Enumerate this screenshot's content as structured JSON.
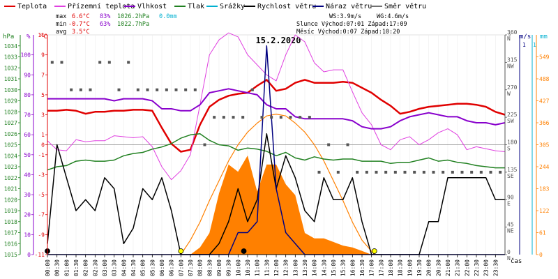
{
  "legend": [
    {
      "label": "Teplota",
      "color": "#e00000"
    },
    {
      "label": "Přízemní teplota",
      "color": "#e040e0"
    },
    {
      "label": "Vlhkost",
      "color": "#8800cc"
    },
    {
      "label": "Tlak",
      "color": "#208020"
    },
    {
      "label": "Srážky",
      "color": "#00b0d0"
    },
    {
      "label": "Rychlost větru",
      "color": "#000000"
    },
    {
      "label": "Náraz větru",
      "color": "#000080"
    },
    {
      "label": "Směr větru",
      "color": "#707070"
    }
  ],
  "stats": {
    "max_label": "max",
    "max_temp": "6.6°C",
    "max_hum": "83%",
    "max_press": "1026.2hPa",
    "max_rain": "0.0mm",
    "min_label": "min",
    "min_temp": "-0.7°C",
    "min_hum": "63%",
    "min_press": "1022.7hPa",
    "avg_label": "avg",
    "avg_temp": "3.5°C",
    "ws": "WS:3.9m/s",
    "wg": "WG:4.6m/s",
    "sun": "Slunce Východ:07:01  Západ:17:09",
    "moon": "Měsíc  Východ:0:07   Západ:10:20"
  },
  "axis_units": {
    "hpa": "hPa",
    "pct": "%",
    "degc": "°C",
    "deg": "°",
    "ms": "m/s",
    "mm": "mm",
    "time": "čas"
  },
  "axis_colors": {
    "hpa": "#208020",
    "pct": "#8800cc",
    "degc": "#e00000",
    "deg": "#555555",
    "ms": "#000080",
    "mm": "#00b0d0",
    "solar": "#ff8000"
  },
  "chart_data": {
    "type": "line",
    "title": "15.2.2020",
    "x_labels": [
      "00:00",
      "00:30",
      "01:00",
      "01:30",
      "02:00",
      "02:30",
      "03:00",
      "03:30",
      "04:00",
      "04:30",
      "05:00",
      "05:30",
      "06:00",
      "06:30",
      "07:00",
      "07:30",
      "08:00",
      "08:30",
      "09:00",
      "09:30",
      "10:00",
      "10:30",
      "11:00",
      "11:30",
      "12:00",
      "12:30",
      "13:00",
      "13:30",
      "14:00",
      "14:30",
      "15:00",
      "15:30",
      "16:00",
      "16:30",
      "17:00",
      "17:30",
      "18:00",
      "18:30",
      "19:00",
      "19:30",
      "20:00",
      "20:30",
      "21:00",
      "21:30",
      "22:00",
      "22:30",
      "23:00",
      "23:30"
    ],
    "axes": {
      "pressure_hpa": {
        "ticks": [
          1015,
          1016,
          1017,
          1018,
          1019,
          1020,
          1021,
          1022,
          1023,
          1024,
          1025,
          1026,
          1027,
          1028,
          1029,
          1030,
          1031,
          1032,
          1033,
          1034
        ],
        "range": [
          1015,
          1035
        ]
      },
      "humidity_pct": {
        "ticks": [
          0,
          10,
          20,
          30,
          40,
          50,
          60,
          70,
          80,
          90,
          100
        ],
        "range": [
          0,
          110
        ]
      },
      "temp_c": {
        "ticks": [
          -11,
          -9,
          -7,
          -5,
          -3,
          -1,
          0,
          1,
          3,
          5,
          7,
          9,
          11
        ],
        "range": [
          -11,
          11
        ]
      },
      "direction_deg": {
        "ticks": [
          {
            "v": 0,
            "l": "0 N"
          },
          {
            "v": 45,
            "l": "45 NE"
          },
          {
            "v": 90,
            "l": "90 E"
          },
          {
            "v": 135,
            "l": "135 SE"
          },
          {
            "v": 180,
            "l": "180 S"
          },
          {
            "v": 225,
            "l": "225 SW"
          },
          {
            "v": 270,
            "l": "270 W"
          },
          {
            "v": 315,
            "l": "315 NW"
          },
          {
            "v": 360,
            "l": "360 N"
          }
        ],
        "range": [
          0,
          360
        ]
      },
      "wind_ms": {
        "ticks": [
          1
        ],
        "range": [
          0,
          1
        ]
      },
      "rain_mm": {
        "ticks": [
          1
        ],
        "range": [
          0,
          1
        ]
      },
      "solar": {
        "ticks": [
          0,
          61,
          122,
          183,
          244,
          305,
          366,
          427,
          488,
          549
        ],
        "range": [
          0,
          610
        ]
      }
    },
    "hours": [
      0,
      0.5,
      1,
      1.5,
      2,
      2.5,
      3,
      3.5,
      4,
      4.5,
      5,
      5.5,
      6,
      6.5,
      7,
      7.5,
      8,
      8.5,
      9,
      9.5,
      10,
      10.5,
      11,
      11.5,
      12,
      12.5,
      13,
      13.5,
      14,
      14.5,
      15,
      15.5,
      16,
      16.5,
      17,
      17.5,
      18,
      18.5,
      19,
      19.5,
      20,
      20.5,
      21,
      21.5,
      22,
      22.5,
      23,
      23.5,
      24
    ],
    "series": [
      {
        "name": "Teplota",
        "axis": "temp_c",
        "color": "#e00000",
        "width": 2.5,
        "values": [
          3.4,
          3.4,
          3.5,
          3.4,
          3.1,
          3.3,
          3.3,
          3.4,
          3.4,
          3.5,
          3.5,
          3.4,
          1.7,
          0.1,
          -0.7,
          -0.5,
          2.0,
          3.8,
          4.5,
          4.9,
          5.1,
          5.2,
          5.9,
          6.5,
          5.4,
          5.6,
          6.2,
          6.5,
          6.2,
          6.2,
          6.2,
          6.3,
          6.2,
          5.7,
          5.2,
          4.5,
          3.9,
          3.1,
          3.3,
          3.6,
          3.8,
          3.9,
          4.0,
          4.1,
          4.1,
          4.0,
          3.8,
          3.3,
          3.0
        ]
      },
      {
        "name": "Přízemní teplota",
        "axis": "temp_c",
        "color": "#e040e0",
        "width": 1,
        "values": [
          0.4,
          -0.5,
          -0.6,
          0.5,
          0.3,
          0.4,
          0.4,
          0.9,
          0.8,
          0.7,
          0.8,
          -0.2,
          -2.2,
          -3.5,
          -2.6,
          -1.0,
          4.0,
          9.0,
          10.5,
          11.2,
          10.8,
          9.0,
          8.0,
          7.0,
          6.4,
          9.0,
          11.0,
          10.3,
          8.2,
          7.3,
          7.5,
          7.5,
          5.3,
          3.2,
          2.0,
          0.0,
          -0.5,
          0.5,
          0.8,
          0.0,
          0.5,
          1.2,
          1.6,
          1.0,
          -0.5,
          -0.2,
          -0.4,
          -0.6,
          -0.7
        ]
      },
      {
        "name": "Vlhkost",
        "axis": "humidity_pct",
        "color": "#8800cc",
        "width": 2,
        "values": [
          78,
          78,
          78,
          78,
          78,
          78,
          78,
          77,
          78,
          78,
          78,
          77,
          73,
          73,
          72,
          72,
          75,
          81,
          82,
          83,
          82,
          81,
          80,
          75,
          73,
          73,
          69,
          68,
          68,
          68,
          68,
          68,
          67,
          64,
          63,
          63,
          64,
          67,
          69,
          70,
          71,
          70,
          69,
          69,
          67,
          66,
          66,
          65,
          66
        ]
      },
      {
        "name": "Tlak",
        "axis": "pressure_hpa",
        "color": "#208020",
        "width": 1.5,
        "values": [
          1022.7,
          1023.0,
          1023.1,
          1023.5,
          1023.6,
          1023.5,
          1023.5,
          1023.6,
          1024.0,
          1024.2,
          1024.3,
          1024.6,
          1024.8,
          1025.1,
          1025.6,
          1025.9,
          1026.0,
          1025.4,
          1025.0,
          1024.9,
          1024.5,
          1024.7,
          1024.6,
          1024.4,
          1024.0,
          1024.3,
          1023.8,
          1023.6,
          1023.9,
          1023.7,
          1023.6,
          1023.7,
          1023.7,
          1023.5,
          1023.5,
          1023.5,
          1023.3,
          1023.4,
          1023.4,
          1023.6,
          1023.8,
          1023.5,
          1023.6,
          1023.4,
          1023.3,
          1023.1,
          1023.0,
          1022.9,
          1022.9
        ]
      },
      {
        "name": "Rychlost větru",
        "axis": "wind_ms",
        "color": "#000000",
        "width": 1.5,
        "values": [
          0.05,
          0.5,
          0.35,
          0.2,
          0.25,
          0.2,
          0.35,
          0.3,
          0.05,
          0.12,
          0.3,
          0.25,
          0.35,
          0.2,
          0.0,
          0.0,
          0.0,
          0.0,
          0.05,
          0.15,
          0.3,
          0.15,
          0.25,
          0.55,
          0.3,
          0.45,
          0.35,
          0.2,
          0.15,
          0.35,
          0.25,
          0.25,
          0.35,
          0.15,
          0.0,
          0.0,
          0.0,
          0.0,
          0.0,
          0.0,
          0.15,
          0.15,
          0.35,
          0.35,
          0.35,
          0.35,
          0.35,
          0.25,
          0.25
        ]
      },
      {
        "name": "Náraz větru",
        "axis": "wind_ms",
        "color": "#000080",
        "width": 1.5,
        "values": [
          0,
          0,
          0,
          0,
          0,
          0,
          0,
          0,
          0,
          0,
          0,
          0,
          0,
          0,
          0,
          0,
          0,
          0,
          0,
          0,
          0.1,
          0.1,
          0.15,
          0.95,
          0.3,
          0.1,
          0.05,
          0,
          0,
          0,
          0,
          0,
          0,
          0,
          0,
          0,
          0,
          0,
          0,
          0,
          0,
          0,
          0,
          0,
          0,
          0,
          0,
          0,
          0
        ]
      },
      {
        "name": "Solar",
        "axis": "solar",
        "color": "#ff8000",
        "area": true,
        "values": [
          0,
          0,
          0,
          0,
          0,
          0,
          0,
          0,
          0,
          0,
          0,
          0,
          0,
          0,
          0,
          0,
          20,
          60,
          170,
          250,
          230,
          275,
          175,
          250,
          250,
          195,
          165,
          60,
          45,
          45,
          35,
          25,
          20,
          10,
          0,
          0,
          0,
          0,
          0,
          0,
          0,
          0,
          0,
          0,
          0,
          0,
          0,
          0,
          0
        ]
      },
      {
        "name": "Solar max",
        "axis": "solar",
        "color": "#ff8000",
        "width": 1.2,
        "hours": [
          7.0,
          7.5,
          8,
          8.5,
          9,
          9.5,
          10,
          10.5,
          11,
          11.5,
          12,
          12.5,
          13,
          13.5,
          14,
          14.5,
          15,
          15.5,
          16,
          16.5,
          17.15
        ],
        "values": [
          0,
          40,
          90,
          150,
          205,
          260,
          305,
          340,
          365,
          385,
          390,
          385,
          365,
          340,
          305,
          260,
          205,
          150,
          90,
          40,
          0
        ]
      }
    ],
    "wind_direction": {
      "axis": "direction_deg",
      "color": "#555555",
      "hours": [
        0.25,
        0.75,
        1.25,
        1.75,
        2.25,
        2.75,
        3.25,
        3.75,
        4.25,
        4.75,
        5.25,
        5.75,
        6.25,
        6.75,
        7.25,
        7.75,
        8.25,
        8.75,
        9.25,
        9.75,
        10.25,
        10.75,
        11.25,
        11.75,
        12.25,
        12.75,
        13.25,
        13.75,
        14.25,
        14.75,
        15.25,
        15.75,
        16.25,
        16.75,
        17.25,
        17.75,
        18.25,
        18.75,
        19.25,
        19.75,
        20.25,
        20.75,
        21.25,
        21.75,
        22.25,
        22.75,
        23.25,
        23.75
      ],
      "values": [
        315,
        315,
        270,
        270,
        270,
        315,
        315,
        270,
        315,
        270,
        270,
        270,
        270,
        270,
        270,
        270,
        180,
        225,
        225,
        225,
        225,
        270,
        225,
        225,
        225,
        225,
        225,
        225,
        135,
        180,
        135,
        180,
        135,
        135,
        135,
        135,
        135,
        135,
        135,
        135,
        135,
        135,
        135,
        135,
        135,
        135,
        135,
        135
      ]
    },
    "markers": [
      {
        "hour": 0.0,
        "kind": "moonrise",
        "color": "#000000"
      },
      {
        "hour": 10.3,
        "kind": "moonset",
        "color": "#000000"
      },
      {
        "hour": 7.0,
        "kind": "sunrise",
        "color": "#ffff00"
      },
      {
        "hour": 17.15,
        "kind": "sunset",
        "color": "#ffff00"
      }
    ]
  }
}
